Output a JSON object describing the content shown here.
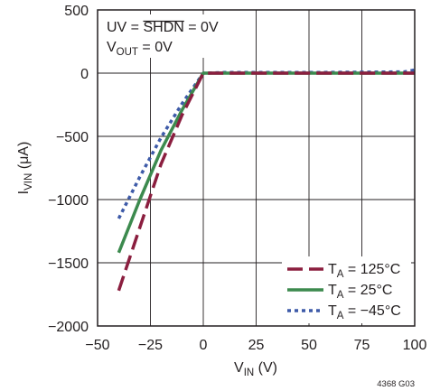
{
  "chart_data": {
    "type": "line",
    "xlabel": {
      "main": "V",
      "sub": "IN",
      "tail": " (V)"
    },
    "ylabel": {
      "main": "I",
      "sub": "VIN",
      "tail": " (μA)"
    },
    "xlim": [
      -50,
      100
    ],
    "ylim": [
      -2000,
      500
    ],
    "x_ticks": [
      -50,
      -25,
      0,
      25,
      50,
      75,
      100
    ],
    "y_ticks": [
      -2000,
      -1500,
      -1000,
      -500,
      0,
      500
    ],
    "x_tick_labels": [
      "−50",
      "−25",
      "0",
      "25",
      "50",
      "75",
      "100"
    ],
    "y_tick_labels": [
      "−2000",
      "−1500",
      "−1000",
      "−500",
      "0",
      "500"
    ],
    "grid": true,
    "legend_position": "bottom-right",
    "conditions": {
      "line1": {
        "pre": "UV = ",
        "over": "SHDN",
        "post": " = 0V"
      },
      "line2": {
        "main": "V",
        "sub": "OUT",
        "tail": " = 0V"
      }
    },
    "series": [
      {
        "name": "T_A = 125°C",
        "legend": {
          "main": "T",
          "sub": "A",
          "tail": " = 125°C"
        },
        "color": "#8b1e3f",
        "dash": "long-dash",
        "points": [
          [
            -40,
            -1720
          ],
          [
            -30,
            -1220
          ],
          [
            -20,
            -720
          ],
          [
            -10,
            -330
          ],
          [
            0,
            0
          ],
          [
            10,
            0
          ],
          [
            50,
            0
          ],
          [
            100,
            0
          ]
        ]
      },
      {
        "name": "T_A = 25°C",
        "legend": {
          "main": "T",
          "sub": "A",
          "tail": " = 25°C"
        },
        "color": "#3c8a4e",
        "dash": "solid",
        "points": [
          [
            -40,
            -1420
          ],
          [
            -30,
            -1000
          ],
          [
            -20,
            -610
          ],
          [
            -10,
            -290
          ],
          [
            0,
            0
          ],
          [
            10,
            0
          ],
          [
            50,
            0
          ],
          [
            100,
            0
          ]
        ]
      },
      {
        "name": "T_A = −45°C",
        "legend": {
          "main": "T",
          "sub": "A",
          "tail": " = −45°C"
        },
        "color": "#3d5aa8",
        "dash": "dotted",
        "points": [
          [
            -40,
            -1150
          ],
          [
            -30,
            -820
          ],
          [
            -20,
            -510
          ],
          [
            -10,
            -240
          ],
          [
            0,
            0
          ],
          [
            10,
            5
          ],
          [
            50,
            5
          ],
          [
            95,
            10
          ],
          [
            100,
            25
          ]
        ]
      }
    ]
  },
  "figure_id": "4368 G03"
}
